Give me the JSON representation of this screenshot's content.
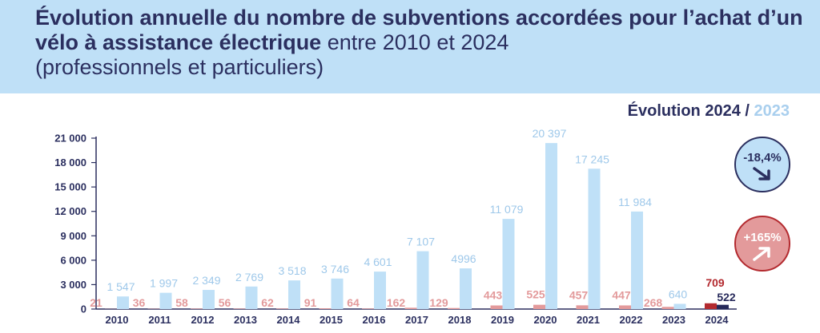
{
  "header": {
    "title_bold": "Évolution annuelle du nombre de subventions accordées pour l’achat d’un vélo à assistance électrique",
    "title_rest": " entre 2010 et 2024",
    "subtitle": "(professionnels et particuliers)",
    "bg_color": "#bfe0f7",
    "text_color": "#2b2f5f"
  },
  "evolution": {
    "label": "Évolution 2024 /",
    "year_ref": "2023",
    "badges": [
      {
        "value": "-18,4%",
        "fill": "#bfe0f7",
        "text_color": "#2b2f5f",
        "arrow": "down-right-arrow-icon"
      },
      {
        "value": "+165%",
        "fill": "#e39a9b",
        "text_color": "#ffffff",
        "arrow": "up-right-arrow-icon"
      }
    ]
  },
  "chart_data": {
    "type": "bar",
    "categories": [
      "2010",
      "2011",
      "2012",
      "2013",
      "2014",
      "2015",
      "2016",
      "2017",
      "2018",
      "2019",
      "2020",
      "2021",
      "2022",
      "2023",
      "2024"
    ],
    "ylim": [
      0,
      21000
    ],
    "yticks": [
      0,
      3000,
      6000,
      9000,
      12000,
      15000,
      18000,
      21000
    ],
    "ytick_labels": [
      "0",
      "3 000",
      "6 000",
      "9 000",
      "12 000",
      "15 000",
      "18 000",
      "21 000"
    ],
    "grid": false,
    "series": [
      {
        "values": [
          21,
          36,
          58,
          56,
          62,
          91,
          64,
          162,
          129,
          443,
          525,
          457,
          447,
          268,
          709
        ],
        "labels": [
          "21",
          "36",
          "58",
          "56",
          "62",
          "91",
          "64",
          "162",
          "129",
          "443",
          "525",
          "457",
          "447",
          "268",
          "709"
        ],
        "color": "#e39a9b",
        "highlight_color": "#b32a2f"
      },
      {
        "values": [
          1547,
          1997,
          2349,
          2769,
          3518,
          3746,
          4601,
          7107,
          4996,
          11079,
          20397,
          17245,
          11984,
          640,
          522
        ],
        "labels": [
          "1 547",
          "1 997",
          "2 349",
          "2 769",
          "3 518",
          "3 746",
          "4 601",
          "7 107",
          "4996",
          "11 079",
          "20 397",
          "17 245",
          "11 984",
          "640",
          "522"
        ],
        "color": "#bfe0f7",
        "label_color": "#9ec8ea",
        "highlight_color": "#26295a"
      }
    ]
  }
}
